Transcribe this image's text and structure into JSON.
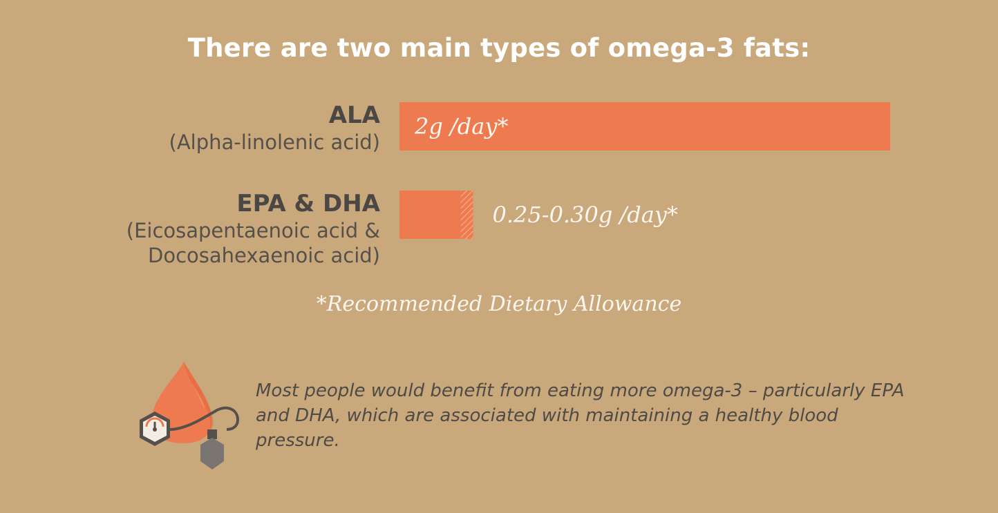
{
  "title": "There are two main types of omega-3 fats:",
  "chart_data": {
    "type": "bar",
    "orientation": "horizontal",
    "unit": "g/day",
    "xlim": [
      0,
      2
    ],
    "categories": [
      {
        "abbr": "ALA",
        "full_lines": [
          "(Alpha-linolenic acid)"
        ],
        "value": 2.0,
        "value_label": "2g /day*",
        "label_position": "inside"
      },
      {
        "abbr": "EPA & DHA",
        "full_lines": [
          "(Eicosapentaenoic acid &",
          "Docosahexaenoic acid)"
        ],
        "value": 0.25,
        "range_max": 0.3,
        "value_label": "0.25-0.30g /day*",
        "label_position": "outside"
      }
    ],
    "colors": {
      "bar": "#ee7a4f",
      "range_hatch": "#f2a47f"
    }
  },
  "footnote": "*Recommended Dietary Allowance",
  "note": "Most people would benefit from eating more omega-3 – particularly EPA and DHA, which are associated with maintaining a healthy blood pressure.",
  "illustration": {
    "icons": [
      "blood-drop-icon",
      "pressure-gauge-icon",
      "pump-bulb-icon"
    ],
    "colors": {
      "drop": "#ee7a4f",
      "dark": "#55504c",
      "gauge_face": "#f4ede3"
    }
  },
  "colors": {
    "background": "#c9a87b",
    "text_dark": "#4a4744",
    "text_light": "#ffffff"
  }
}
